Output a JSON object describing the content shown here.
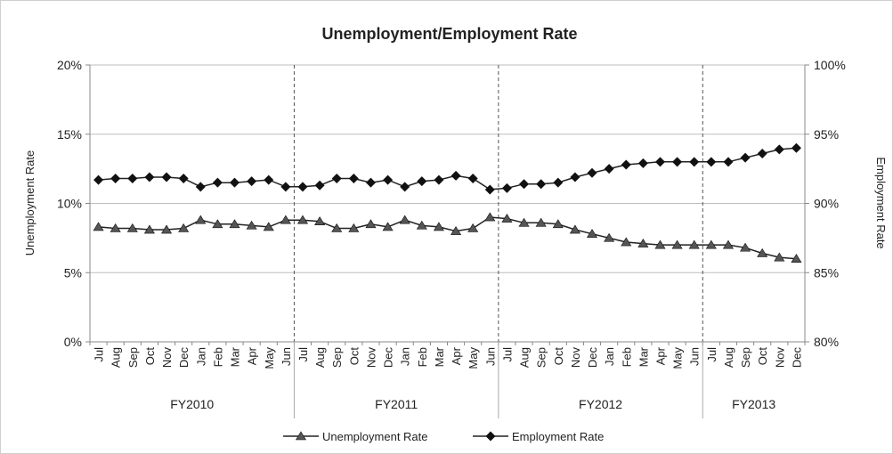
{
  "chart_data": {
    "type": "line",
    "title": "Unemployment/Employment Rate",
    "ylabel_left": "Unemployment Rate",
    "ylabel_right": "Employment Rate",
    "ylim_left": [
      0,
      20
    ],
    "ylim_right": [
      80,
      100
    ],
    "yticks_left": [
      "0%",
      "5%",
      "10%",
      "15%",
      "20%"
    ],
    "yticks_right": [
      "80%",
      "85%",
      "90%",
      "95%",
      "100%"
    ],
    "grid": "horizontal",
    "legend_position": "bottom",
    "categories": [
      "Jul",
      "Aug",
      "Sep",
      "Oct",
      "Nov",
      "Dec",
      "Jan",
      "Feb",
      "Mar",
      "Apr",
      "May",
      "Jun",
      "Jul",
      "Aug",
      "Sep",
      "Oct",
      "Nov",
      "Dec",
      "Jan",
      "Feb",
      "Mar",
      "Apr",
      "May",
      "Jun",
      "Jul",
      "Aug",
      "Sep",
      "Oct",
      "Nov",
      "Dec",
      "Jan",
      "Feb",
      "Mar",
      "Apr",
      "May",
      "Jun",
      "Jul",
      "Aug",
      "Sep",
      "Oct",
      "Nov",
      "Dec"
    ],
    "groups": [
      {
        "label": "FY2010",
        "count": 12
      },
      {
        "label": "FY2011",
        "count": 12
      },
      {
        "label": "FY2012",
        "count": 12
      },
      {
        "label": "FY2013",
        "count": 6
      }
    ],
    "series": [
      {
        "name": "Unemployment Rate",
        "axis": "left",
        "marker": "triangle",
        "values": [
          8.3,
          8.2,
          8.2,
          8.1,
          8.1,
          8.2,
          8.8,
          8.5,
          8.5,
          8.4,
          8.3,
          8.8,
          8.8,
          8.7,
          8.2,
          8.2,
          8.5,
          8.3,
          8.8,
          8.4,
          8.3,
          8.0,
          8.2,
          9.0,
          8.9,
          8.6,
          8.6,
          8.5,
          8.1,
          7.8,
          7.5,
          7.2,
          7.1,
          7.0,
          7.0,
          7.0,
          7.0,
          7.0,
          6.8,
          6.4,
          6.1,
          6.0
        ]
      },
      {
        "name": "Employment Rate",
        "axis": "right",
        "marker": "diamond",
        "values": [
          91.7,
          91.8,
          91.8,
          91.9,
          91.9,
          91.8,
          91.2,
          91.5,
          91.5,
          91.6,
          91.7,
          91.2,
          91.2,
          91.3,
          91.8,
          91.8,
          91.5,
          91.7,
          91.2,
          91.6,
          91.7,
          92.0,
          91.8,
          91.0,
          91.1,
          91.4,
          91.4,
          91.5,
          91.9,
          92.2,
          92.5,
          92.8,
          92.9,
          93.0,
          93.0,
          93.0,
          93.0,
          93.0,
          93.3,
          93.6,
          93.9,
          94.0
        ]
      }
    ]
  }
}
